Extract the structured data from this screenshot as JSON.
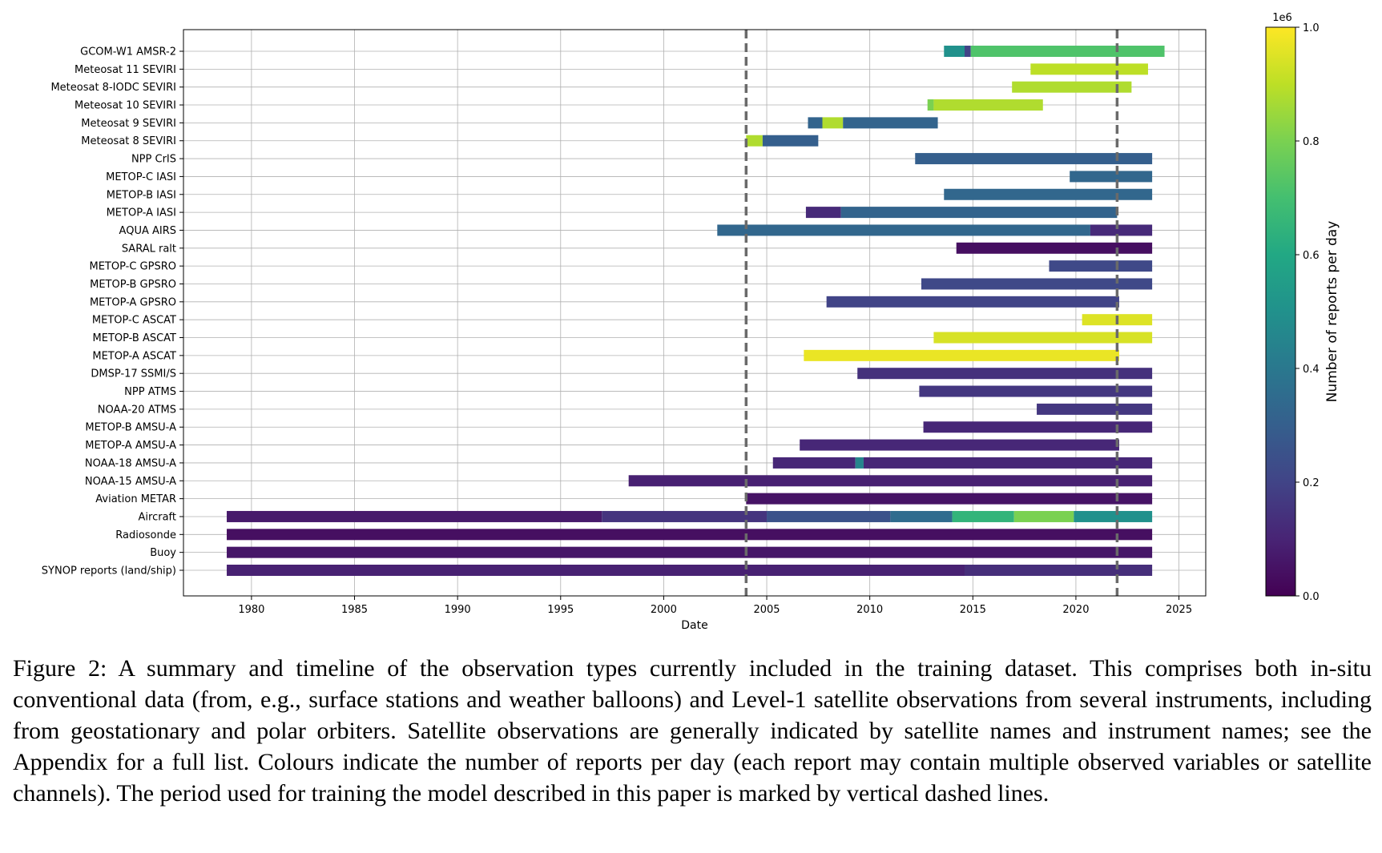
{
  "chart_data": {
    "type": "timeline",
    "xlabel": "Date",
    "xlim": [
      1976.7,
      2026.3
    ],
    "x_ticks": [
      1980,
      1985,
      1990,
      1995,
      2000,
      2005,
      2010,
      2015,
      2020,
      2025
    ],
    "grid": true,
    "training_period": [
      2004.0,
      2022.0
    ],
    "colorbar": {
      "label": "Number of reports per day",
      "multiplier": "1e6",
      "range": [
        0.0,
        1.0
      ],
      "ticks": [
        "0.0",
        "0.2",
        "0.4",
        "0.6",
        "0.8",
        "1.0"
      ],
      "colormap": "viridis"
    },
    "series": [
      {
        "name": "GCOM-W1 AMSR-2",
        "segments": [
          [
            2013.6,
            2014.6,
            0.5
          ],
          [
            2014.6,
            2014.9,
            0.2
          ],
          [
            2014.9,
            2024.3,
            0.72
          ]
        ]
      },
      {
        "name": "Meteosat 11 SEVIRI",
        "segments": [
          [
            2017.8,
            2023.5,
            0.9
          ]
        ]
      },
      {
        "name": "Meteosat 8-IODC SEVIRI",
        "segments": [
          [
            2016.9,
            2022.7,
            0.88
          ]
        ]
      },
      {
        "name": "Meteosat 10 SEVIRI",
        "segments": [
          [
            2012.8,
            2013.1,
            0.8
          ],
          [
            2013.1,
            2018.4,
            0.88
          ]
        ]
      },
      {
        "name": "Meteosat 9 SEVIRI",
        "segments": [
          [
            2007.0,
            2007.7,
            0.32
          ],
          [
            2007.7,
            2008.7,
            0.88
          ],
          [
            2008.7,
            2013.3,
            0.32
          ]
        ]
      },
      {
        "name": "Meteosat 8 SEVIRI",
        "segments": [
          [
            2004.0,
            2004.8,
            0.88
          ],
          [
            2004.8,
            2007.5,
            0.3
          ]
        ]
      },
      {
        "name": "NPP CrIS",
        "segments": [
          [
            2012.2,
            2023.7,
            0.3
          ]
        ]
      },
      {
        "name": "METOP-C IASI",
        "segments": [
          [
            2019.7,
            2023.7,
            0.33
          ]
        ]
      },
      {
        "name": "METOP-B IASI",
        "segments": [
          [
            2013.6,
            2023.7,
            0.33
          ]
        ]
      },
      {
        "name": "METOP-A IASI",
        "segments": [
          [
            2006.9,
            2008.6,
            0.12
          ],
          [
            2008.6,
            2022.0,
            0.32
          ]
        ]
      },
      {
        "name": "AQUA AIRS",
        "segments": [
          [
            2002.6,
            2020.7,
            0.33
          ],
          [
            2020.7,
            2023.7,
            0.12
          ]
        ]
      },
      {
        "name": "SARAL ralt",
        "segments": [
          [
            2014.2,
            2023.7,
            0.04
          ]
        ]
      },
      {
        "name": "METOP-C GPSRO",
        "segments": [
          [
            2018.7,
            2023.7,
            0.22
          ]
        ]
      },
      {
        "name": "METOP-B GPSRO",
        "segments": [
          [
            2012.5,
            2023.7,
            0.22
          ]
        ]
      },
      {
        "name": "METOP-A GPSRO",
        "segments": [
          [
            2007.9,
            2022.1,
            0.2
          ]
        ]
      },
      {
        "name": "METOP-C ASCAT",
        "segments": [
          [
            2020.3,
            2023.7,
            0.95
          ]
        ]
      },
      {
        "name": "METOP-B ASCAT",
        "segments": [
          [
            2013.1,
            2023.7,
            0.94
          ]
        ]
      },
      {
        "name": "METOP-A ASCAT",
        "segments": [
          [
            2006.8,
            2022.1,
            0.97
          ]
        ]
      },
      {
        "name": "DMSP-17 SSMI/S",
        "segments": [
          [
            2009.4,
            2023.7,
            0.14
          ]
        ]
      },
      {
        "name": "NPP ATMS",
        "segments": [
          [
            2012.4,
            2023.7,
            0.16
          ]
        ]
      },
      {
        "name": "NOAA-20 ATMS",
        "segments": [
          [
            2018.1,
            2023.7,
            0.16
          ]
        ]
      },
      {
        "name": "METOP-B AMSU-A",
        "segments": [
          [
            2012.6,
            2023.7,
            0.11
          ]
        ]
      },
      {
        "name": "METOP-A AMSU-A",
        "segments": [
          [
            2006.6,
            2022.1,
            0.11
          ]
        ]
      },
      {
        "name": "NOAA-18 AMSU-A",
        "segments": [
          [
            2005.3,
            2009.3,
            0.11
          ],
          [
            2009.3,
            2009.7,
            0.45
          ],
          [
            2009.7,
            2023.7,
            0.11
          ]
        ]
      },
      {
        "name": "NOAA-15 AMSU-A",
        "segments": [
          [
            1998.3,
            2023.7,
            0.09
          ]
        ]
      },
      {
        "name": "Aviation METAR",
        "segments": [
          [
            2004.0,
            2023.7,
            0.05
          ]
        ]
      },
      {
        "name": "Aircraft",
        "segments": [
          [
            1978.8,
            1997.0,
            0.07
          ],
          [
            1997.0,
            2005.0,
            0.15
          ],
          [
            2005.0,
            2011.0,
            0.25
          ],
          [
            2011.0,
            2014.0,
            0.35
          ],
          [
            2014.0,
            2017.0,
            0.65
          ],
          [
            2017.0,
            2019.9,
            0.8
          ],
          [
            2019.9,
            2023.7,
            0.5
          ]
        ]
      },
      {
        "name": "Radiosonde",
        "segments": [
          [
            1978.8,
            2023.7,
            0.04
          ]
        ]
      },
      {
        "name": "Buoy",
        "segments": [
          [
            1978.8,
            2023.7,
            0.06
          ]
        ]
      },
      {
        "name": "SYNOP reports (land/ship)",
        "segments": [
          [
            1978.8,
            2014.6,
            0.09
          ],
          [
            2014.6,
            2023.7,
            0.13
          ]
        ]
      }
    ]
  },
  "caption": "Figure 2: A summary and timeline of the observation types currently included in the training dataset. This comprises both in-situ conventional data (from, e.g., surface stations and weather balloons) and Level-1 satellite observations from several instruments, including from geostationary and polar orbiters. Satellite observations are generally indicated by satellite names and instrument names; see the Appendix for a full list. Colours indicate the number of reports per day (each report may contain multiple observed variables or satellite channels). The period used for training the model described in this paper is marked by vertical dashed lines."
}
